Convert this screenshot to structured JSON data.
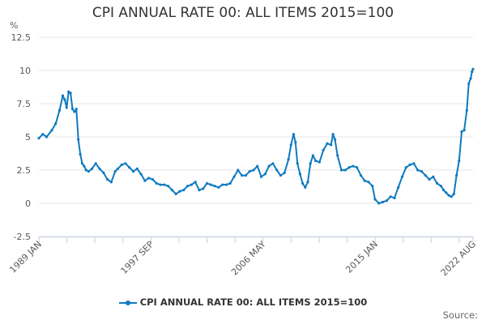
{
  "chart_data": {
    "type": "line",
    "title": "CPI ANNUAL RATE 00: ALL ITEMS 2015=100",
    "ylabel": "%",
    "xlabel": "",
    "ylim": [
      -2.5,
      12.5
    ],
    "yticks": [
      -2.5,
      0,
      2.5,
      5,
      7.5,
      10,
      12.5
    ],
    "ytick_labels": [
      "-2.5",
      "0",
      "2.5",
      "5",
      "7.5",
      "10",
      "12.5"
    ],
    "xlim": [
      1989.0,
      2022.58
    ],
    "xtick_labels": [
      {
        "label": "1989 JAN",
        "x": 1989.0
      },
      {
        "label": "1997 SEP",
        "x": 1997.67
      },
      {
        "label": "2006 MAY",
        "x": 2006.33
      },
      {
        "label": "2015 JAN",
        "x": 2015.0
      },
      {
        "label": "2022 AUG",
        "x": 2022.58
      }
    ],
    "minor_xticks": [
      1991.17,
      1993.33,
      1995.5,
      1999.83,
      2002.0,
      2004.17,
      2008.5,
      2010.67,
      2012.83,
      2017.17,
      2019.33,
      2021.5
    ],
    "grid": true,
    "legend_position": "bottom",
    "series": [
      {
        "name": "CPI ANNUAL RATE 00: ALL ITEMS 2015=100",
        "color": "#0f7abf",
        "x": [
          1989.0,
          1989.3,
          1989.6,
          1990.0,
          1990.3,
          1990.6,
          1990.85,
          1991.0,
          1991.15,
          1991.3,
          1991.45,
          1991.6,
          1991.75,
          1991.9,
          1992.05,
          1992.2,
          1992.35,
          1992.5,
          1992.65,
          1992.85,
          1993.1,
          1993.4,
          1993.7,
          1994.0,
          1994.3,
          1994.6,
          1994.9,
          1995.1,
          1995.4,
          1995.7,
          1996.0,
          1996.3,
          1996.6,
          1996.9,
          1997.2,
          1997.5,
          1997.8,
          1998.1,
          1998.4,
          1998.7,
          1999.0,
          1999.3,
          1999.6,
          1999.9,
          2000.2,
          2000.5,
          2000.8,
          2001.1,
          2001.4,
          2001.7,
          2002.0,
          2002.3,
          2002.6,
          2002.9,
          2003.2,
          2003.5,
          2003.8,
          2004.1,
          2004.4,
          2004.7,
          2005.0,
          2005.3,
          2005.6,
          2005.9,
          2006.2,
          2006.5,
          2006.8,
          2007.1,
          2007.4,
          2007.7,
          2008.0,
          2008.3,
          2008.5,
          2008.7,
          2008.85,
          2009.0,
          2009.2,
          2009.4,
          2009.6,
          2009.8,
          2010.0,
          2010.2,
          2010.4,
          2010.7,
          2011.0,
          2011.3,
          2011.6,
          2011.75,
          2011.9,
          2012.1,
          2012.4,
          2012.7,
          2013.0,
          2013.3,
          2013.6,
          2013.9,
          2014.2,
          2014.5,
          2014.8,
          2015.0,
          2015.3,
          2015.6,
          2015.9,
          2016.2,
          2016.5,
          2016.8,
          2017.1,
          2017.4,
          2017.7,
          2018.0,
          2018.3,
          2018.6,
          2018.9,
          2019.2,
          2019.5,
          2019.8,
          2020.1,
          2020.3,
          2020.5,
          2020.7,
          2020.9,
          2021.1,
          2021.3,
          2021.5,
          2021.7,
          2021.9,
          2022.1,
          2022.25,
          2022.4,
          2022.5,
          2022.58
        ],
        "values": [
          4.9,
          5.2,
          5.0,
          5.5,
          6.0,
          7.0,
          8.1,
          7.8,
          7.2,
          8.4,
          8.3,
          7.1,
          6.9,
          7.1,
          4.8,
          3.7,
          3.0,
          2.8,
          2.5,
          2.4,
          2.6,
          3.0,
          2.6,
          2.3,
          1.8,
          1.6,
          2.4,
          2.6,
          2.9,
          3.0,
          2.7,
          2.4,
          2.6,
          2.2,
          1.7,
          1.9,
          1.8,
          1.5,
          1.4,
          1.4,
          1.3,
          1.0,
          0.7,
          0.9,
          1.0,
          1.3,
          1.4,
          1.6,
          1.0,
          1.1,
          1.5,
          1.4,
          1.3,
          1.2,
          1.4,
          1.4,
          1.5,
          2.0,
          2.5,
          2.1,
          2.1,
          2.4,
          2.5,
          2.8,
          2.0,
          2.2,
          2.8,
          3.0,
          2.5,
          2.1,
          2.3,
          3.3,
          4.4,
          5.2,
          4.6,
          3.0,
          2.2,
          1.5,
          1.2,
          1.6,
          3.0,
          3.6,
          3.2,
          3.1,
          4.0,
          4.5,
          4.4,
          5.2,
          4.8,
          3.6,
          2.5,
          2.5,
          2.7,
          2.8,
          2.7,
          2.1,
          1.7,
          1.6,
          1.3,
          0.3,
          0.0,
          0.1,
          0.2,
          0.5,
          0.4,
          1.2,
          2.0,
          2.7,
          2.9,
          3.0,
          2.5,
          2.4,
          2.1,
          1.8,
          2.0,
          1.5,
          1.3,
          1.0,
          0.8,
          0.6,
          0.5,
          0.7,
          2.1,
          3.2,
          5.4,
          5.5,
          7.0,
          9.0,
          9.4,
          9.9,
          10.1
        ]
      }
    ]
  },
  "legend": {
    "label": "CPI ANNUAL RATE 00: ALL ITEMS 2015=100"
  },
  "source": {
    "label": "Source:"
  },
  "colors": {
    "series": "#0f7abf",
    "grid": "#e6e6e6",
    "axis": "#c0d0e0"
  }
}
